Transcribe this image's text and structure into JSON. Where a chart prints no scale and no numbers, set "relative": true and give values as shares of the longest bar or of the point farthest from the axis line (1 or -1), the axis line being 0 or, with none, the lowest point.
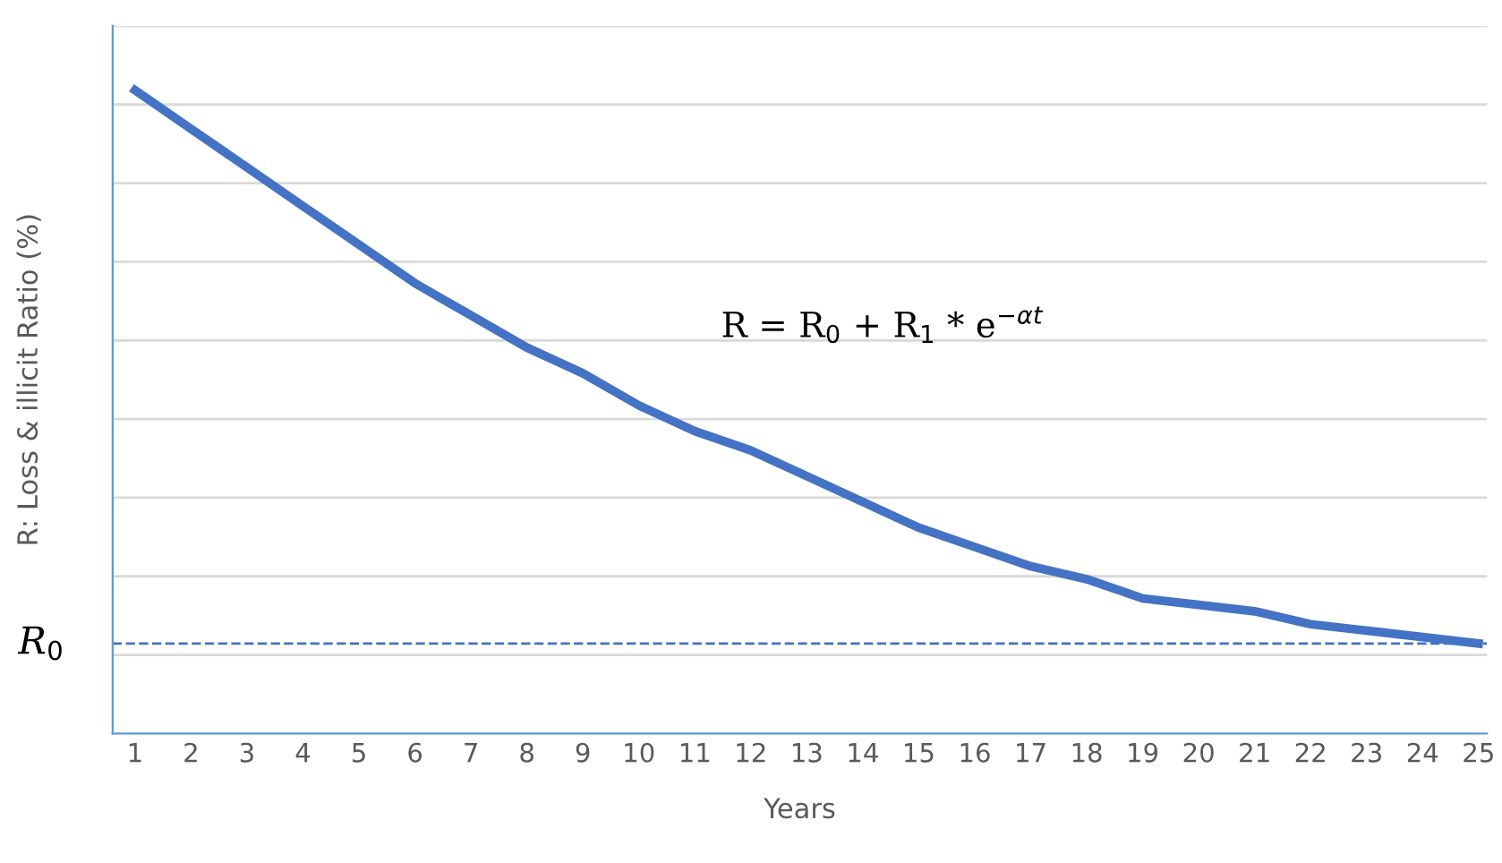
{
  "chart_data": {
    "type": "line",
    "relative": true,
    "xlabel": "Years",
    "ylabel": "R: Loss & illicit Ratio (%)",
    "categories": [
      "1",
      "2",
      "3",
      "4",
      "5",
      "6",
      "7",
      "8",
      "9",
      "10",
      "11",
      "12",
      "13",
      "14",
      "15",
      "16",
      "17",
      "18",
      "19",
      "20",
      "21",
      "22",
      "23",
      "24",
      "25"
    ],
    "series": [
      {
        "color": "#4472c4",
        "values": [
          1.0,
          0.94,
          0.88,
          0.82,
          0.76,
          0.7,
          0.65,
          0.6,
          0.56,
          0.51,
          0.47,
          0.44,
          0.4,
          0.36,
          0.32,
          0.29,
          0.26,
          0.24,
          0.21,
          0.2,
          0.19,
          0.17,
          0.16,
          0.15,
          0.14
        ]
      }
    ],
    "ref_lines": [
      {
        "axis": "y",
        "value": 0.14,
        "label": "R$_{0}$",
        "color": "#4472c4",
        "line_style": "dashed"
      }
    ],
    "annotations": [
      "R = R$_{0}$ + R$_{1}$ * e$^{−αt}$"
    ],
    "grid": "y",
    "tick_labels": "x",
    "marker": "none",
    "line_style": "solid",
    "legend": false
  }
}
